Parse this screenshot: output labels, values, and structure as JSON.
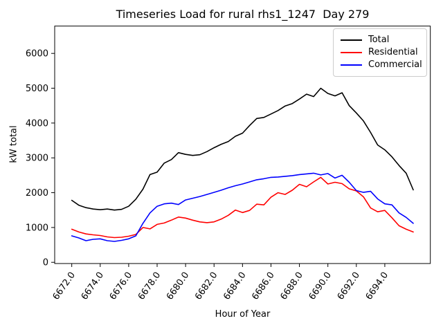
{
  "title": "Timeseries Load for rural rhs1_1247  Day 279",
  "chart_data": {
    "type": "line",
    "title": "Timeseries Load for rural rhs1_1247  Day 279",
    "xlabel": "Hour of Year",
    "ylabel": "kW total",
    "grid": false,
    "legend_position": "upper right",
    "xlim": [
      6670.8,
      6697.2
    ],
    "ylim": [
      -35,
      6785
    ],
    "x_ticks": [
      6672,
      6674,
      6676,
      6678,
      6680,
      6682,
      6684,
      6686,
      6688,
      6690,
      6692,
      6694
    ],
    "x_tick_labels": [
      "6672.0",
      "6674.0",
      "6676.0",
      "6678.0",
      "6680.0",
      "6682.0",
      "6684.0",
      "6686.0",
      "6688.0",
      "6690.0",
      "6692.0",
      "6694.0"
    ],
    "y_ticks": [
      0,
      1000,
      2000,
      3000,
      4000,
      5000,
      6000
    ],
    "y_tick_labels": [
      "0",
      "1000",
      "2000",
      "3000",
      "4000",
      "5000",
      "6000"
    ],
    "x": [
      6672,
      6672.5,
      6673,
      6673.5,
      6674,
      6674.5,
      6675,
      6675.5,
      6676,
      6676.5,
      6677,
      6677.5,
      6678,
      6678.5,
      6679,
      6679.5,
      6680,
      6680.5,
      6681,
      6681.5,
      6682,
      6682.5,
      6683,
      6683.5,
      6684,
      6684.5,
      6685,
      6685.5,
      6686,
      6686.5,
      6687,
      6687.5,
      6688,
      6688.5,
      6689,
      6689.5,
      6690,
      6690.5,
      6691,
      6691.5,
      6692,
      6692.5,
      6693,
      6693.5,
      6694,
      6694.5,
      6695,
      6695.5,
      6696
    ],
    "series": [
      {
        "name": "Total",
        "color": "#000000",
        "values": [
          1780,
          1640,
          1570,
          1530,
          1510,
          1530,
          1500,
          1520,
          1610,
          1810,
          2100,
          2520,
          2590,
          2850,
          2950,
          3150,
          3100,
          3070,
          3090,
          3180,
          3290,
          3390,
          3470,
          3620,
          3710,
          3930,
          4130,
          4160,
          4260,
          4360,
          4490,
          4560,
          4690,
          4830,
          4760,
          5000,
          4850,
          4780,
          4870,
          4500,
          4290,
          4060,
          3730,
          3370,
          3230,
          3030,
          2780,
          2560,
          2080
        ]
      },
      {
        "name": "Residential",
        "color": "#ff0000",
        "values": [
          950,
          870,
          815,
          790,
          770,
          730,
          710,
          720,
          750,
          800,
          1000,
          960,
          1090,
          1130,
          1210,
          1300,
          1270,
          1210,
          1160,
          1140,
          1160,
          1240,
          1350,
          1500,
          1430,
          1490,
          1670,
          1650,
          1870,
          2000,
          1950,
          2070,
          2240,
          2170,
          2310,
          2440,
          2250,
          2300,
          2260,
          2110,
          2050,
          1880,
          1560,
          1450,
          1490,
          1280,
          1050,
          950,
          870
        ]
      },
      {
        "name": "Commercial",
        "color": "#0000ff",
        "values": [
          760,
          700,
          620,
          660,
          675,
          620,
          600,
          630,
          675,
          760,
          1120,
          1420,
          1610,
          1680,
          1700,
          1660,
          1790,
          1840,
          1890,
          1950,
          2010,
          2070,
          2140,
          2200,
          2250,
          2310,
          2370,
          2400,
          2440,
          2450,
          2470,
          2490,
          2520,
          2540,
          2560,
          2510,
          2550,
          2420,
          2500,
          2300,
          2060,
          2010,
          2040,
          1820,
          1680,
          1650,
          1420,
          1290,
          1120
        ]
      }
    ]
  }
}
